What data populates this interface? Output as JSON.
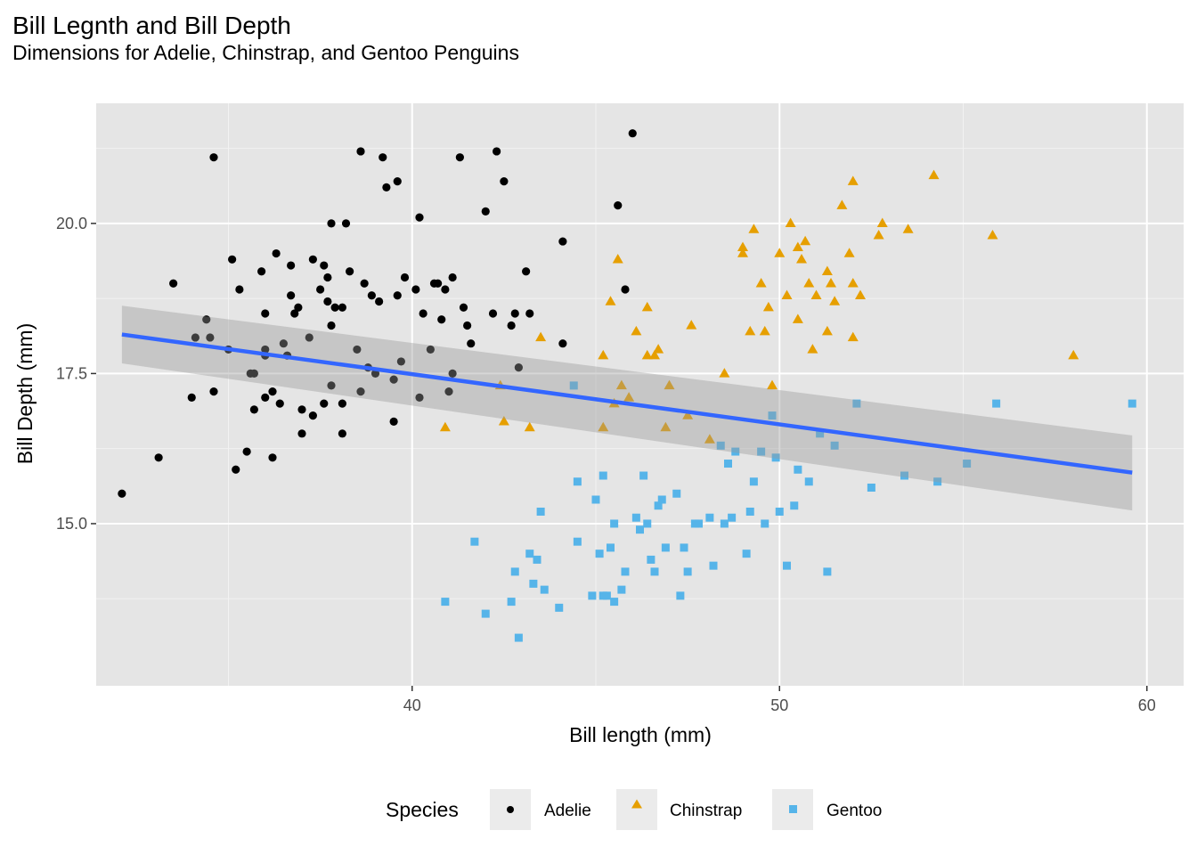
{
  "chart_data": {
    "type": "scatter",
    "title": "Bill Legnth and Bill Depth",
    "subtitle": "Dimensions for Adelie, Chinstrap, and Gentoo Penguins",
    "xlabel": "Bill length (mm)",
    "ylabel": "Bill Depth (mm)",
    "xlim": [
      31.4,
      61.0
    ],
    "ylim": [
      12.3,
      22.0
    ],
    "xticks": [
      40,
      50,
      60
    ],
    "yticks": [
      15.0,
      17.5,
      20.0
    ],
    "xtick_labels": [
      "40",
      "50",
      "60"
    ],
    "ytick_labels": [
      "15.0",
      "17.5",
      "20.0"
    ],
    "grid": true,
    "background": "#e5e5e5",
    "legend": {
      "title": "Species",
      "position": "bottom"
    },
    "trend": {
      "type": "linear",
      "color": "#3366ff",
      "band_color": "#999999",
      "x": [
        32.1,
        59.6
      ],
      "y": [
        18.15,
        15.85
      ],
      "band_lower": [
        17.67,
        15.22
      ],
      "band_upper": [
        18.63,
        16.47
      ]
    },
    "series": [
      {
        "name": "Adelie",
        "marker": "circle",
        "color": "#000000",
        "points": [
          [
            32.1,
            15.5
          ],
          [
            33.1,
            16.1
          ],
          [
            33.5,
            19.0
          ],
          [
            34.0,
            17.1
          ],
          [
            34.1,
            18.1
          ],
          [
            34.4,
            18.4
          ],
          [
            34.5,
            18.1
          ],
          [
            34.6,
            21.1
          ],
          [
            34.6,
            17.2
          ],
          [
            35.0,
            17.9
          ],
          [
            35.1,
            19.4
          ],
          [
            35.2,
            15.9
          ],
          [
            35.3,
            18.9
          ],
          [
            35.5,
            16.2
          ],
          [
            35.6,
            17.5
          ],
          [
            35.7,
            17.5
          ],
          [
            35.7,
            16.9
          ],
          [
            35.9,
            19.2
          ],
          [
            36.0,
            18.5
          ],
          [
            36.0,
            17.9
          ],
          [
            36.0,
            17.8
          ],
          [
            36.0,
            17.1
          ],
          [
            36.2,
            16.1
          ],
          [
            36.2,
            17.2
          ],
          [
            36.3,
            19.5
          ],
          [
            36.4,
            17.0
          ],
          [
            36.5,
            18.0
          ],
          [
            36.6,
            17.8
          ],
          [
            36.7,
            19.3
          ],
          [
            36.7,
            18.8
          ],
          [
            36.8,
            18.5
          ],
          [
            36.9,
            18.6
          ],
          [
            37.0,
            16.9
          ],
          [
            37.0,
            16.5
          ],
          [
            37.2,
            18.1
          ],
          [
            37.3,
            19.4
          ],
          [
            37.3,
            16.8
          ],
          [
            37.5,
            18.9
          ],
          [
            37.6,
            19.3
          ],
          [
            37.6,
            17.0
          ],
          [
            37.7,
            19.1
          ],
          [
            37.7,
            18.7
          ],
          [
            37.8,
            20.0
          ],
          [
            37.8,
            18.3
          ],
          [
            37.8,
            17.3
          ],
          [
            37.9,
            18.6
          ],
          [
            38.1,
            18.6
          ],
          [
            38.1,
            17.0
          ],
          [
            38.1,
            16.5
          ],
          [
            38.2,
            20.0
          ],
          [
            38.3,
            19.2
          ],
          [
            38.5,
            17.9
          ],
          [
            38.6,
            21.2
          ],
          [
            38.6,
            17.2
          ],
          [
            38.7,
            19.0
          ],
          [
            38.8,
            17.6
          ],
          [
            38.9,
            18.8
          ],
          [
            39.0,
            17.5
          ],
          [
            39.1,
            18.7
          ],
          [
            39.2,
            21.1
          ],
          [
            39.3,
            20.6
          ],
          [
            39.5,
            17.4
          ],
          [
            39.5,
            16.7
          ],
          [
            39.6,
            20.7
          ],
          [
            39.6,
            18.8
          ],
          [
            39.7,
            17.7
          ],
          [
            39.8,
            19.1
          ],
          [
            40.1,
            18.9
          ],
          [
            40.2,
            20.1
          ],
          [
            40.2,
            17.1
          ],
          [
            40.3,
            18.5
          ],
          [
            40.5,
            17.9
          ],
          [
            40.6,
            19.0
          ],
          [
            40.7,
            19.0
          ],
          [
            40.8,
            18.4
          ],
          [
            40.9,
            18.9
          ],
          [
            41.0,
            17.2
          ],
          [
            41.1,
            19.1
          ],
          [
            41.1,
            17.5
          ],
          [
            41.3,
            21.1
          ],
          [
            41.4,
            18.6
          ],
          [
            41.5,
            18.3
          ],
          [
            41.6,
            18.0
          ],
          [
            42.0,
            20.2
          ],
          [
            42.2,
            18.5
          ],
          [
            42.3,
            21.2
          ],
          [
            42.5,
            20.7
          ],
          [
            42.7,
            18.3
          ],
          [
            42.8,
            18.5
          ],
          [
            42.9,
            17.6
          ],
          [
            43.1,
            19.2
          ],
          [
            43.2,
            18.5
          ],
          [
            44.1,
            19.7
          ],
          [
            44.1,
            18.0
          ],
          [
            45.6,
            20.3
          ],
          [
            45.8,
            18.9
          ],
          [
            46.0,
            21.5
          ]
        ]
      },
      {
        "name": "Chinstrap",
        "marker": "triangle",
        "color": "#e69f00",
        "points": [
          [
            40.9,
            16.6
          ],
          [
            42.4,
            17.3
          ],
          [
            42.5,
            16.7
          ],
          [
            43.2,
            16.6
          ],
          [
            43.5,
            18.1
          ],
          [
            45.2,
            17.8
          ],
          [
            45.2,
            16.6
          ],
          [
            45.4,
            18.7
          ],
          [
            45.5,
            17.0
          ],
          [
            45.6,
            19.4
          ],
          [
            45.7,
            17.3
          ],
          [
            45.9,
            17.1
          ],
          [
            46.1,
            18.2
          ],
          [
            46.4,
            18.6
          ],
          [
            46.4,
            17.8
          ],
          [
            46.6,
            17.8
          ],
          [
            46.7,
            17.9
          ],
          [
            46.9,
            16.6
          ],
          [
            47.0,
            17.3
          ],
          [
            47.5,
            16.8
          ],
          [
            47.6,
            18.3
          ],
          [
            48.1,
            16.4
          ],
          [
            48.5,
            17.5
          ],
          [
            49.0,
            19.6
          ],
          [
            49.0,
            19.5
          ],
          [
            49.2,
            18.2
          ],
          [
            49.3,
            19.9
          ],
          [
            49.5,
            19.0
          ],
          [
            49.6,
            18.2
          ],
          [
            49.7,
            18.6
          ],
          [
            49.8,
            17.3
          ],
          [
            50.0,
            19.5
          ],
          [
            50.2,
            18.8
          ],
          [
            50.3,
            20.0
          ],
          [
            50.5,
            19.6
          ],
          [
            50.5,
            18.4
          ],
          [
            50.6,
            19.4
          ],
          [
            50.7,
            19.7
          ],
          [
            50.8,
            19.0
          ],
          [
            50.9,
            17.9
          ],
          [
            51.0,
            18.8
          ],
          [
            51.3,
            19.2
          ],
          [
            51.3,
            18.2
          ],
          [
            51.4,
            19.0
          ],
          [
            51.5,
            18.7
          ],
          [
            51.7,
            20.3
          ],
          [
            51.9,
            19.5
          ],
          [
            52.0,
            20.7
          ],
          [
            52.0,
            19.0
          ],
          [
            52.0,
            18.1
          ],
          [
            52.2,
            18.8
          ],
          [
            52.7,
            19.8
          ],
          [
            52.8,
            20.0
          ],
          [
            53.5,
            19.9
          ],
          [
            54.2,
            20.8
          ],
          [
            55.8,
            19.8
          ],
          [
            58.0,
            17.8
          ]
        ]
      },
      {
        "name": "Gentoo",
        "marker": "square",
        "color": "#56b4e9",
        "points": [
          [
            40.9,
            13.7
          ],
          [
            41.7,
            14.7
          ],
          [
            42.0,
            13.5
          ],
          [
            42.7,
            13.7
          ],
          [
            42.8,
            14.2
          ],
          [
            42.9,
            13.1
          ],
          [
            43.2,
            14.5
          ],
          [
            43.3,
            14.0
          ],
          [
            43.4,
            14.4
          ],
          [
            43.5,
            15.2
          ],
          [
            43.6,
            13.9
          ],
          [
            44.0,
            13.6
          ],
          [
            44.4,
            17.3
          ],
          [
            44.5,
            15.7
          ],
          [
            44.5,
            14.7
          ],
          [
            44.9,
            13.8
          ],
          [
            45.0,
            15.4
          ],
          [
            45.1,
            14.5
          ],
          [
            45.2,
            15.8
          ],
          [
            45.2,
            13.8
          ],
          [
            45.3,
            13.8
          ],
          [
            45.4,
            14.6
          ],
          [
            45.5,
            15.0
          ],
          [
            45.5,
            13.7
          ],
          [
            45.7,
            13.9
          ],
          [
            45.8,
            14.2
          ],
          [
            46.1,
            15.1
          ],
          [
            46.2,
            14.9
          ],
          [
            46.3,
            15.8
          ],
          [
            46.4,
            15.0
          ],
          [
            46.5,
            14.4
          ],
          [
            46.6,
            14.2
          ],
          [
            46.7,
            15.3
          ],
          [
            46.8,
            15.4
          ],
          [
            46.9,
            14.6
          ],
          [
            47.2,
            15.5
          ],
          [
            47.3,
            13.8
          ],
          [
            47.4,
            14.6
          ],
          [
            47.5,
            14.2
          ],
          [
            47.7,
            15.0
          ],
          [
            47.8,
            15.0
          ],
          [
            48.1,
            15.1
          ],
          [
            48.2,
            14.3
          ],
          [
            48.4,
            16.3
          ],
          [
            48.5,
            15.0
          ],
          [
            48.6,
            16.0
          ],
          [
            48.7,
            15.1
          ],
          [
            48.8,
            16.2
          ],
          [
            49.1,
            14.5
          ],
          [
            49.2,
            15.2
          ],
          [
            49.3,
            15.7
          ],
          [
            49.5,
            16.2
          ],
          [
            49.6,
            15.0
          ],
          [
            49.8,
            16.8
          ],
          [
            49.9,
            16.1
          ],
          [
            50.0,
            15.2
          ],
          [
            50.2,
            14.3
          ],
          [
            50.4,
            15.3
          ],
          [
            50.5,
            15.9
          ],
          [
            50.8,
            15.7
          ],
          [
            51.1,
            16.5
          ],
          [
            51.3,
            14.2
          ],
          [
            51.5,
            16.3
          ],
          [
            52.1,
            17.0
          ],
          [
            52.5,
            15.6
          ],
          [
            53.4,
            15.8
          ],
          [
            54.3,
            15.7
          ],
          [
            55.1,
            16.0
          ],
          [
            55.9,
            17.0
          ],
          [
            59.6,
            17.0
          ]
        ]
      }
    ]
  }
}
